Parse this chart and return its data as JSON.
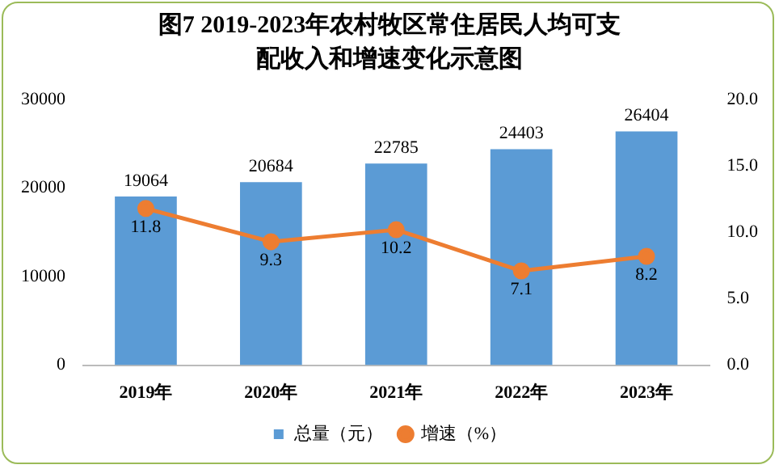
{
  "chart_data": {
    "type": "bar",
    "title": "图7   2019-2023年农村牧区常住居民人均可支配收入和增速变化示意图",
    "categories": [
      "2019年",
      "2020年",
      "2021年",
      "2022年",
      "2023年"
    ],
    "series": [
      {
        "name": "总量（元）",
        "color": "#5b9bd5",
        "values": [
          19064,
          20684,
          22785,
          24403,
          26404
        ]
      },
      {
        "name": "增速（%）",
        "type": "line",
        "axis": "y2",
        "color": "#ed7d31",
        "marker": "circle",
        "values": [
          11.8,
          9.3,
          10.2,
          7.1,
          8.2
        ]
      }
    ],
    "ylim": [
      0,
      30000
    ],
    "yticks": [
      0,
      10000,
      20000,
      30000
    ],
    "y2lim": [
      0,
      20
    ],
    "y2ticks": [
      {
        "value": 0,
        "label": "0.0"
      },
      {
        "value": 5,
        "label": "5.0"
      },
      {
        "value": 10,
        "label": "10.0"
      },
      {
        "value": 15,
        "label": "15.0"
      },
      {
        "value": 20,
        "label": "20.0"
      }
    ],
    "data_labels": true,
    "grid": false,
    "legend": "bottom"
  }
}
